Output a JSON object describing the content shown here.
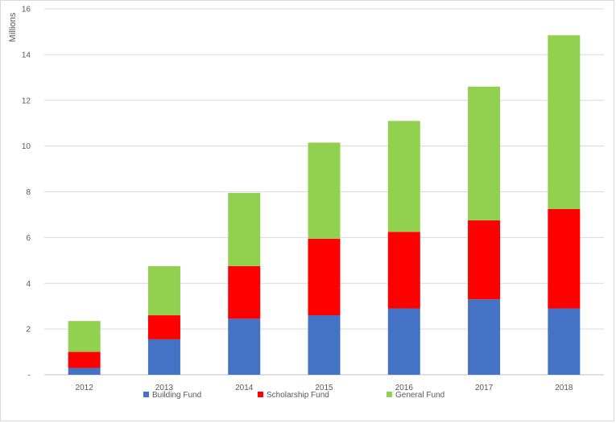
{
  "chart_data": {
    "type": "bar",
    "stacked": true,
    "title": "",
    "xlabel": "",
    "ylabel": "Millions",
    "ylim": [
      0,
      16
    ],
    "yticks": [
      0,
      2,
      4,
      6,
      8,
      10,
      12,
      14,
      16
    ],
    "ytick_labels": [
      "-",
      "2",
      "4",
      "6",
      "8",
      "10",
      "12",
      "14",
      "16"
    ],
    "grid": true,
    "legend_position": "bottom",
    "categories": [
      "2012",
      "2013",
      "2014",
      "2015",
      "2016",
      "2017",
      "2018"
    ],
    "series": [
      {
        "name": "Building Fund",
        "color": "#4472c4",
        "values": [
          0.3,
          1.55,
          2.45,
          2.6,
          2.9,
          3.3,
          2.9
        ]
      },
      {
        "name": "Scholarship Fund",
        "color": "#ff0000",
        "values": [
          0.7,
          1.05,
          2.3,
          3.35,
          3.35,
          3.45,
          4.35
        ]
      },
      {
        "name": "General Fund",
        "color": "#92d050",
        "values": [
          1.35,
          2.15,
          3.2,
          4.2,
          4.85,
          5.85,
          7.6
        ]
      }
    ]
  }
}
